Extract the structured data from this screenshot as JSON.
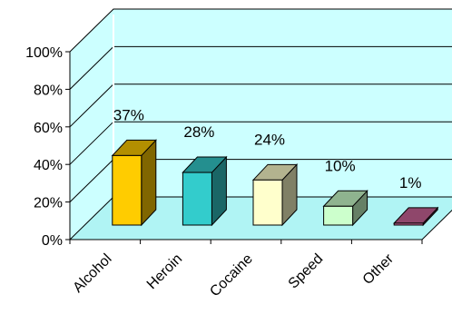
{
  "chart_data": {
    "type": "bar",
    "title": "",
    "xlabel": "",
    "ylabel": "",
    "ylim": [
      0,
      100
    ],
    "yticks": [
      "0%",
      "20%",
      "40%",
      "60%",
      "80%",
      "100%"
    ],
    "ytick_values": [
      0,
      20,
      40,
      60,
      80,
      100
    ],
    "categories": [
      "Alcohol",
      "Heroin",
      "Cocaine",
      "Speed",
      "Other"
    ],
    "values": [
      37,
      28,
      24,
      10,
      1
    ],
    "data_labels": [
      "37%",
      "28%",
      "24%",
      "10%",
      "1%"
    ],
    "grid": true,
    "legend": "none",
    "three_d": true,
    "colors": {
      "wall": "#ccffff",
      "floor": "#b0f4f4",
      "bars": [
        {
          "front": "#ffcc00",
          "top": "#b38f00",
          "side": "#806600"
        },
        {
          "front": "#33cccc",
          "top": "#248f8f",
          "side": "#1a6666"
        },
        {
          "front": "#ffffcc",
          "top": "#b3b38f",
          "side": "#808066"
        },
        {
          "front": "#ccffcc",
          "top": "#8fb38f",
          "side": "#668066"
        },
        {
          "front": "#cc6699",
          "top": "#8f476b",
          "side": "#66334c"
        }
      ]
    }
  }
}
